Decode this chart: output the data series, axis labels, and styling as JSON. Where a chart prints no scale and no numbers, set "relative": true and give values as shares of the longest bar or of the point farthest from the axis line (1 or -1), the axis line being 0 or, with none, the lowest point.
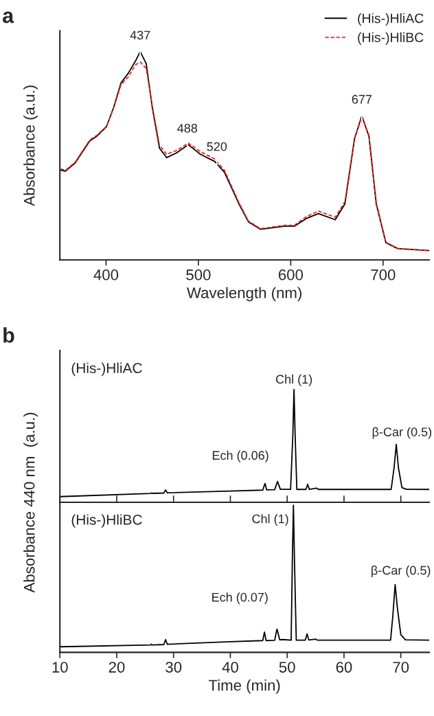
{
  "chart_data": [
    {
      "type": "line",
      "title": "a",
      "xlabel": "Wavelength (nm)",
      "ylabel": "Absorbance (a.u.)",
      "relative": true,
      "xlim": [
        350,
        750
      ],
      "xticks": [
        400,
        500,
        600,
        700
      ],
      "legend": "top right",
      "tick_labels": "x",
      "series": [
        {
          "name": "(His-)HliAC",
          "color": "#000000",
          "line_style": "solid",
          "x": [
            351,
            356,
            366.6,
            382.2,
            390,
            400.5,
            408.3,
            416.1,
            424,
            431.8,
            437,
            443.5,
            450,
            457.9,
            465.7,
            476.1,
            489.1,
            502.2,
            517.8,
            528.3,
            543.9,
            554.3,
            567.4,
            593.5,
            603.9,
            617,
            630,
            648.2,
            658.7,
            669.1,
            677,
            684.7,
            692.6,
            703,
            716,
            750
          ],
          "values": [
            0.431,
            0.426,
            0.466,
            0.571,
            0.594,
            0.64,
            0.733,
            0.849,
            0.896,
            0.954,
            1.0,
            0.942,
            0.733,
            0.536,
            0.491,
            0.513,
            0.553,
            0.507,
            0.472,
            0.42,
            0.269,
            0.182,
            0.147,
            0.162,
            0.162,
            0.199,
            0.222,
            0.193,
            0.269,
            0.582,
            0.692,
            0.594,
            0.269,
            0.083,
            0.054,
            0.045
          ]
        },
        {
          "name": "(His-)HliBC",
          "color": "#e8251f",
          "line_style": "dashed",
          "x": [
            351,
            356,
            366.6,
            382.2,
            390,
            400.5,
            408.3,
            416.1,
            424,
            431.8,
            437,
            443.5,
            450,
            457.9,
            465.7,
            476.1,
            489.1,
            502.2,
            517.8,
            528.3,
            543.9,
            554.3,
            567.4,
            593.5,
            603.9,
            617,
            630,
            648.2,
            658.7,
            669.1,
            677,
            684.7,
            692.6,
            703,
            716,
            750
          ],
          "values": [
            0.437,
            0.43,
            0.47,
            0.575,
            0.598,
            0.642,
            0.73,
            0.84,
            0.878,
            0.936,
            0.95,
            0.919,
            0.74,
            0.55,
            0.507,
            0.525,
            0.561,
            0.52,
            0.484,
            0.43,
            0.275,
            0.186,
            0.15,
            0.166,
            0.166,
            0.208,
            0.234,
            0.205,
            0.28,
            0.585,
            0.685,
            0.6,
            0.275,
            0.085,
            0.055,
            0.045
          ]
        }
      ],
      "annotations": [
        {
          "text": "437",
          "x": 437,
          "y": 1.0
        },
        {
          "text": "488",
          "x": 488,
          "y": 0.553
        },
        {
          "text": "520",
          "x": 520,
          "y": 0.465
        },
        {
          "text": "677",
          "x": 677,
          "y": 0.692
        }
      ]
    },
    {
      "type": "line",
      "title": "b",
      "ylabel": "Absorbance 440 nm  (a.u.)",
      "relative": true,
      "xlim": [
        10,
        75
      ],
      "xticks": [
        {
          "value": 10,
          "label": null
        },
        {
          "value": 20,
          "label": null
        },
        {
          "value": 30,
          "label": null
        },
        {
          "value": 40,
          "label": null
        },
        {
          "value": 50,
          "label": null
        },
        {
          "value": 60,
          "label": null
        },
        {
          "value": 70,
          "label": null
        }
      ],
      "tick_labels": false,
      "series": [
        {
          "color": "#000000",
          "x": [
            10,
            26,
            26.1,
            26.3,
            28.3,
            28.6,
            28.9,
            40,
            45.7,
            46.1,
            46.4,
            47.8,
            48.3,
            48.8,
            50.6,
            51.0,
            51.2,
            51.4,
            51.7,
            53.3,
            53.6,
            53.9,
            55.2,
            55.5,
            68.3,
            68.8,
            69.2,
            69.6,
            70.2,
            71,
            75
          ],
          "values": [
            0.05,
            0.078,
            0.083,
            0.079,
            0.082,
            0.11,
            0.084,
            0.1,
            0.108,
            0.167,
            0.11,
            0.112,
            0.185,
            0.115,
            0.115,
            0.6,
            1.0,
            0.6,
            0.114,
            0.114,
            0.16,
            0.115,
            0.125,
            0.114,
            0.114,
            0.3,
            0.513,
            0.3,
            0.13,
            0.115,
            0.114
          ]
        }
      ],
      "annotations": [
        "(His-)HliAC",
        {
          "text": "Chl (1)",
          "x": 51.2,
          "y": 1.0
        },
        {
          "text": "β-Car (0.5)",
          "x": 69.2,
          "y": 0.513
        },
        {
          "text": "Ech (0.06)",
          "x": 48.3,
          "y": 0.185
        }
      ]
    },
    {
      "type": "line",
      "xlabel": "Time (min)",
      "relative": true,
      "xlim": [
        10,
        75
      ],
      "xticks": [
        10,
        20,
        30,
        40,
        50,
        60,
        70
      ],
      "tick_labels": "x",
      "series": [
        {
          "color": "#000000",
          "x": [
            10,
            26,
            26.1,
            26.3,
            28.3,
            28.6,
            28.9,
            40,
            45.7,
            46.0,
            46.3,
            47.8,
            48.2,
            48.7,
            49.3,
            50.7,
            50.9,
            51.1,
            51.3,
            51.6,
            53.2,
            53.5,
            53.8,
            55.0,
            55.3,
            68.2,
            68.6,
            69.0,
            69.4,
            70.0,
            70.8,
            75
          ],
          "values": [
            0.038,
            0.05,
            0.056,
            0.05,
            0.053,
            0.087,
            0.055,
            0.072,
            0.08,
            0.138,
            0.08,
            0.082,
            0.158,
            0.085,
            0.087,
            0.083,
            0.6,
            1.0,
            0.6,
            0.083,
            0.083,
            0.126,
            0.084,
            0.09,
            0.083,
            0.083,
            0.25,
            0.461,
            0.3,
            0.12,
            0.085,
            0.083
          ]
        }
      ],
      "annotations": [
        "(His-)HliBC",
        {
          "text": "Chl (1)",
          "x": 51.1,
          "y": 1.0
        },
        {
          "text": "β-Car (0.5)",
          "x": 69.0,
          "y": 0.461
        },
        {
          "text": "Ech (0.07)",
          "x": 48.2,
          "y": 0.158
        }
      ]
    }
  ]
}
